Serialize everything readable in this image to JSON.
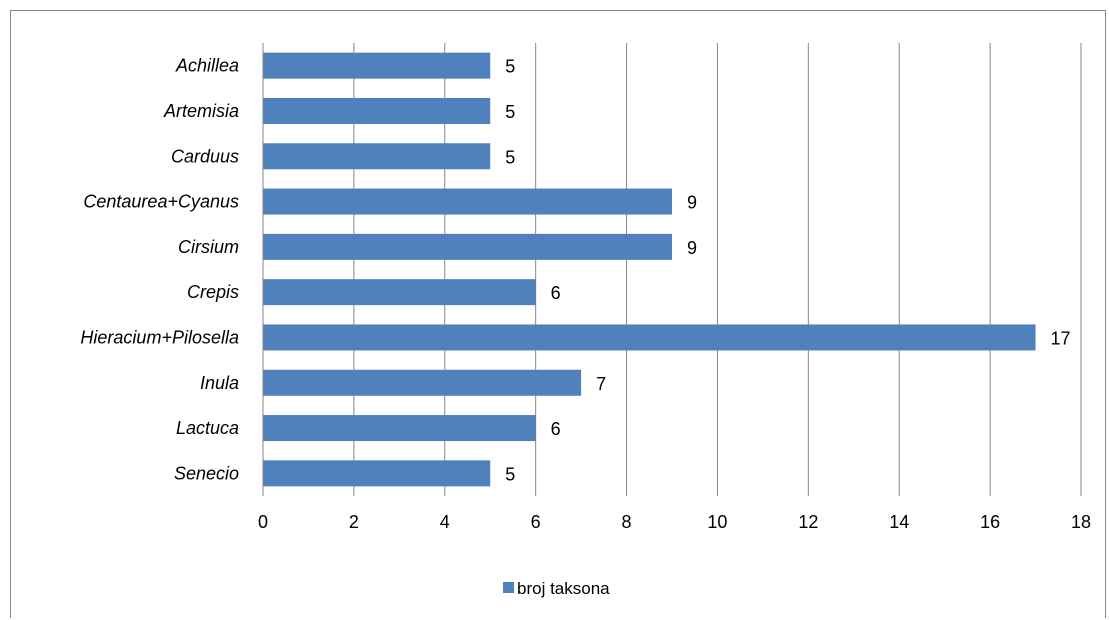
{
  "chart_data": {
    "type": "bar",
    "orientation": "horizontal",
    "categories": [
      "Achillea",
      "Artemisia",
      "Carduus",
      "Centaurea+Cyanus",
      "Cirsium",
      "Crepis",
      "Hieracium+Pilosella",
      "Inula",
      "Lactuca",
      "Senecio"
    ],
    "series": [
      {
        "name": "broj taksona",
        "values": [
          5,
          5,
          5,
          9,
          9,
          6,
          17,
          7,
          6,
          5
        ],
        "color": "#4f81bd"
      }
    ],
    "xlim": [
      0,
      18
    ],
    "xticks": [
      0,
      2,
      4,
      6,
      8,
      10,
      12,
      14,
      16,
      18
    ],
    "grid": "vertical major gridlines",
    "data_labels": true,
    "legend": "bottom",
    "title": "",
    "xlabel": "",
    "ylabel": ""
  }
}
